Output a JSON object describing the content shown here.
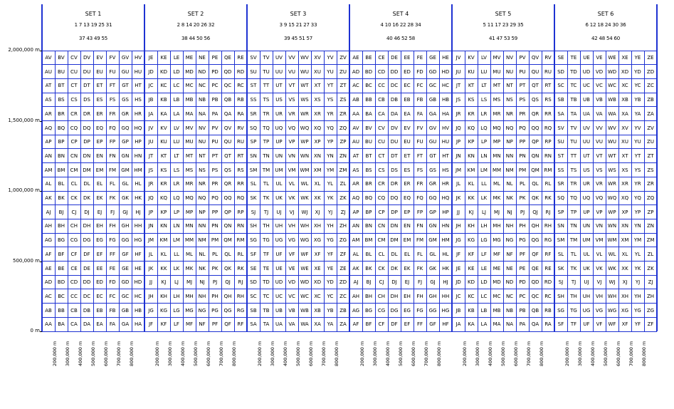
{
  "sets": [
    {
      "title": "SET 1",
      "line1": "1 7 13 19 25 31",
      "line2": "37 43 49 55"
    },
    {
      "title": "SET 2",
      "line1": "2 8 14 20 26 32",
      "line2": "38 44 50 56"
    },
    {
      "title": "SET 3",
      "line1": "3 9 15 21 27 33",
      "line2": "39 45 51 57"
    },
    {
      "title": "SET 4",
      "line1": "4 10 16 22 28 34",
      "line2": "40 46 52 58"
    },
    {
      "title": "SET 5",
      "line1": "5 11 17 23 29 35",
      "line2": "41 47 53 59"
    },
    {
      "title": "SET 6",
      "line1": "6 12 18 24 30 36",
      "line2": "42 48 54 60"
    }
  ],
  "y_axis_labels": [
    {
      "label": "2,000,000 m",
      "value": 2000000
    },
    {
      "label": "1,500,000 m",
      "value": 1500000
    },
    {
      "label": "1,000,000 m",
      "value": 1000000
    },
    {
      "label": "500,000 m",
      "value": 500000
    },
    {
      "label": "0 m",
      "value": 0
    }
  ],
  "x_axis_labels": [
    "200,000 m",
    "300,000 m",
    "400,000 m",
    "500,000 m",
    "600,000 m",
    "700,000 m",
    "800,000 m"
  ],
  "grid": {
    "rows_top_to_bottom": 20,
    "cols_per_set": 8,
    "row_letters_top_to_bottom": [
      "V",
      "U",
      "T",
      "S",
      "R",
      "Q",
      "P",
      "N",
      "M",
      "L",
      "K",
      "J",
      "H",
      "G",
      "F",
      "E",
      "D",
      "C",
      "B",
      "A"
    ],
    "set_column_letters": [
      [
        "A",
        "B",
        "C",
        "D",
        "E",
        "F",
        "G",
        "H"
      ],
      [
        "J",
        "K",
        "L",
        "M",
        "N",
        "P",
        "Q",
        "R"
      ],
      [
        "S",
        "T",
        "U",
        "V",
        "W",
        "X",
        "Y",
        "Z"
      ],
      [
        "A",
        "B",
        "C",
        "D",
        "E",
        "F",
        "G",
        "H"
      ],
      [
        "J",
        "K",
        "L",
        "M",
        "N",
        "P",
        "Q",
        "R"
      ],
      [
        "S",
        "T",
        "U",
        "V",
        "W",
        "X",
        "Y",
        "Z"
      ]
    ],
    "set_row_offsets": [
      0,
      5,
      0,
      5,
      0,
      5
    ],
    "row_cycle": [
      "A",
      "B",
      "C",
      "D",
      "E",
      "F",
      "G",
      "H",
      "J",
      "K",
      "L",
      "M",
      "N",
      "P",
      "Q",
      "R",
      "S",
      "T",
      "U",
      "V"
    ]
  },
  "colors": {
    "grid_line": "#1e32d2",
    "text": "#000000"
  }
}
